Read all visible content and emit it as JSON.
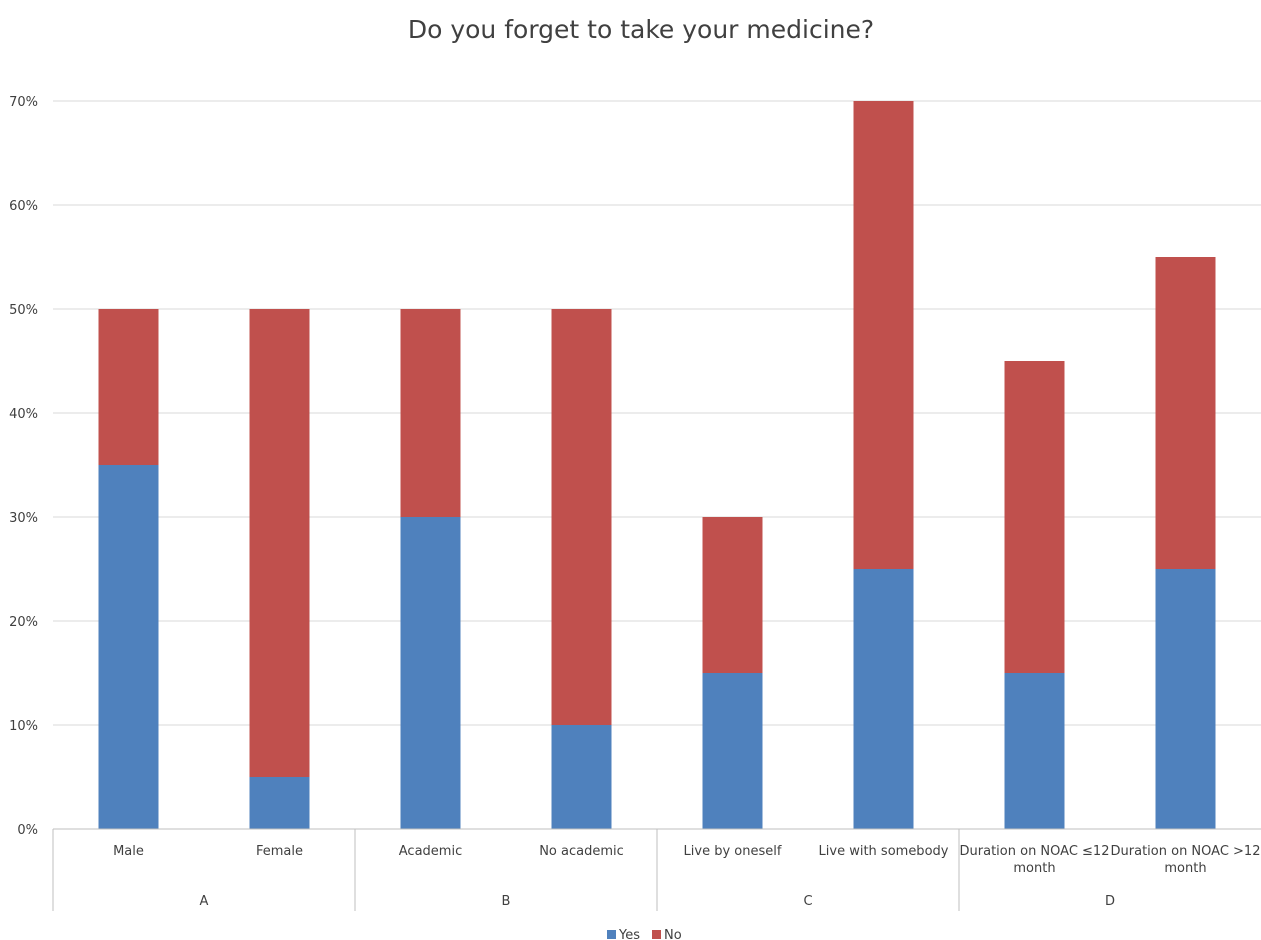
{
  "chart_data": {
    "type": "bar",
    "stacked": true,
    "title": "Do you forget to take your medicine?",
    "xlabel": "",
    "ylabel": "",
    "ylim": [
      0,
      0.7
    ],
    "yticks": [
      "0%",
      "10%",
      "20%",
      "30%",
      "40%",
      "50%",
      "60%",
      "70%"
    ],
    "grid": true,
    "legend_position": "bottom",
    "categories": [
      [
        "Male"
      ],
      [
        "Female"
      ],
      [
        "Academic"
      ],
      [
        "No academic"
      ],
      [
        "Live by oneself"
      ],
      [
        "Live with somebody"
      ],
      [
        "Duration on NOAC ≤12",
        "month"
      ],
      [
        "Duration on NOAC >12",
        "month"
      ]
    ],
    "groups": [
      {
        "label": "A",
        "span": 2
      },
      {
        "label": "B",
        "span": 2
      },
      {
        "label": "C",
        "span": 2
      },
      {
        "label": "D",
        "span": 2
      }
    ],
    "series": [
      {
        "name": "Yes",
        "color": "#4f81bd",
        "values": [
          0.35,
          0.05,
          0.3,
          0.1,
          0.15,
          0.25,
          0.15,
          0.25
        ]
      },
      {
        "name": "No",
        "color": "#c0504d",
        "values": [
          0.15,
          0.45,
          0.2,
          0.4,
          0.15,
          0.45,
          0.3,
          0.3
        ]
      }
    ]
  }
}
